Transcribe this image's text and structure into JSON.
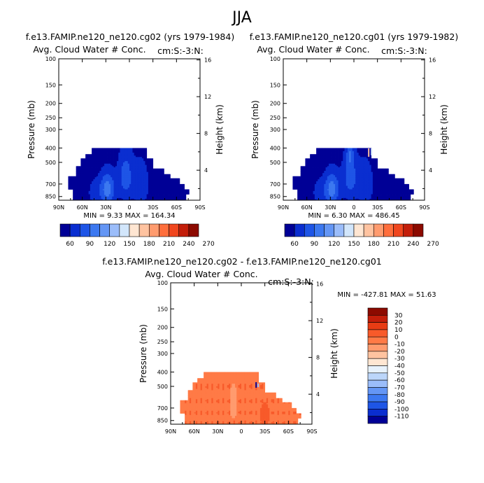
{
  "figure": {
    "title": "JJA",
    "stats_top_left": "MIN =    9.33   MAX = 164.34",
    "stats_top_right": "MIN =    6.30   MAX = 486.45",
    "stats_bottom": "MIN = -427.81   MAX =  51.63"
  },
  "colors": {
    "top_levels": [
      "#000096",
      "#0a2ed0",
      "#1e55e6",
      "#3c78f0",
      "#6496f5",
      "#9bbdfa",
      "#d2e6fb",
      "#ffe6d2",
      "#ffc3a0",
      "#ff9b6e",
      "#ff6e3c",
      "#f0461e",
      "#c31e0a",
      "#8c0a00"
    ],
    "diff_levels": [
      "#000096",
      "#0a2ed0",
      "#1e55e6",
      "#3c78f0",
      "#6496f5",
      "#9bbdfa",
      "#bcd6fa",
      "#e8f2fc",
      "#ffe6d2",
      "#ffc3a0",
      "#ff9b6e",
      "#ff7a46",
      "#f85a2a",
      "#e83c14",
      "#c31e0a",
      "#8c0a00"
    ]
  },
  "chart_data": [
    {
      "type": "heatmap",
      "title": "f.e13.FAMIP.ne120_ne120.cg02 (yrs 1979-1984)",
      "subtitle": "Avg. Cloud Water # Conc.",
      "units": "cm:S:-3:N:",
      "xlabel": "",
      "ylabel": "Pressure (mb)",
      "ylabel_right": "Height (km)",
      "x_ticks": [
        "90N",
        "60N",
        "30N",
        "0",
        "30S",
        "60S",
        "90S"
      ],
      "y_ticks": [
        "100",
        "150",
        "200",
        "250",
        "300",
        "400",
        "500",
        "700",
        "850"
      ],
      "y_ticks_right": [
        "16",
        "12",
        "8",
        "4"
      ],
      "colorbar_labels": [
        "60",
        "90",
        "120",
        "150",
        "180",
        "210",
        "240",
        "270"
      ],
      "min": 9.33,
      "max": 164.34
    },
    {
      "type": "heatmap",
      "title": "f.e13.FAMIP.ne120_ne120.cg01 (yrs 1979-1982)",
      "subtitle": "Avg. Cloud Water # Conc.",
      "units": "cm:S:-3:N:",
      "xlabel": "",
      "ylabel": "Pressure (mb)",
      "ylabel_right": "Height (km)",
      "x_ticks": [
        "90N",
        "60N",
        "30N",
        "0",
        "30S",
        "60S",
        "90S"
      ],
      "y_ticks": [
        "100",
        "150",
        "200",
        "250",
        "300",
        "400",
        "500",
        "700",
        "850"
      ],
      "y_ticks_right": [
        "16",
        "12",
        "8",
        "4"
      ],
      "colorbar_labels": [
        "60",
        "90",
        "120",
        "150",
        "180",
        "210",
        "240",
        "270"
      ],
      "min": 6.3,
      "max": 486.45
    },
    {
      "type": "heatmap",
      "title": "f.e13.FAMIP.ne120_ne120.cg02 - f.e13.FAMIP.ne120_ne120.cg01",
      "subtitle": "Avg. Cloud Water # Conc.",
      "units": "cm:S:-3:N:",
      "xlabel": "",
      "ylabel": "Pressure (mb)",
      "ylabel_right": "Height (km)",
      "x_ticks": [
        "90N",
        "60N",
        "30N",
        "0",
        "30S",
        "60S",
        "90S"
      ],
      "y_ticks": [
        "100",
        "150",
        "200",
        "250",
        "300",
        "400",
        "500",
        "700",
        "850"
      ],
      "y_ticks_right": [
        "16",
        "12",
        "8",
        "4"
      ],
      "colorbar_labels": [
        "30",
        "20",
        "10",
        "0",
        "-10",
        "-20",
        "-30",
        "-40",
        "-50",
        "-60",
        "-70",
        "-80",
        "-90",
        "-100",
        "-110"
      ],
      "min": -427.81,
      "max": 51.63
    }
  ]
}
